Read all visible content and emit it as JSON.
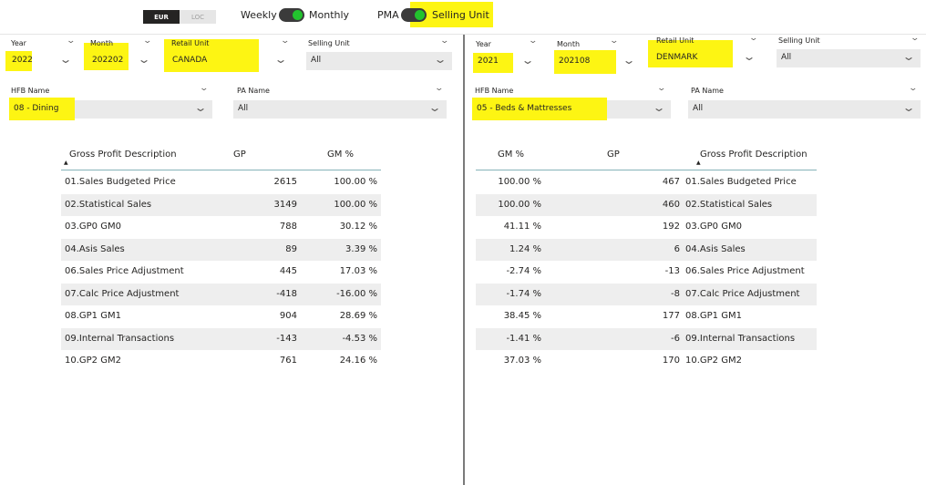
{
  "toolbar": {
    "currency": {
      "active": "EUR",
      "inactive": "LOC"
    },
    "period_toggle": {
      "left_label": "Weekly",
      "right_label": "Monthly"
    },
    "mode_toggle": {
      "left_label": "PMA",
      "right_label": "Selling Unit"
    },
    "colors": {
      "toggle_on": "#22c32e",
      "highlight": "#fdf513"
    }
  },
  "left": {
    "filters": {
      "year": {
        "label": "Year",
        "value": "2022"
      },
      "month": {
        "label": "Month",
        "value": "202202"
      },
      "retail_unit": {
        "label": "Retail Unit",
        "value": "CANADA"
      },
      "selling_unit": {
        "label": "Selling Unit",
        "value": "All"
      },
      "hfb_name": {
        "label": "HFB Name",
        "value": "08 - Dining"
      },
      "pa_name": {
        "label": "PA Name",
        "value": "All"
      }
    },
    "table": {
      "headers": {
        "desc": "Gross Profit Description",
        "gp": "GP",
        "gm": "GM %"
      },
      "rows": [
        {
          "desc": "01.Sales Budgeted Price",
          "gp": "2615",
          "gm": "100.00 %"
        },
        {
          "desc": "02.Statistical Sales",
          "gp": "3149",
          "gm": "100.00 %"
        },
        {
          "desc": "03.GP0 GM0",
          "gp": "788",
          "gm": "30.12 %"
        },
        {
          "desc": "04.Asis Sales",
          "gp": "89",
          "gm": "3.39 %"
        },
        {
          "desc": "06.Sales Price Adjustment",
          "gp": "445",
          "gm": "17.03 %"
        },
        {
          "desc": "07.Calc Price Adjustment",
          "gp": "-418",
          "gm": "-16.00 %"
        },
        {
          "desc": "08.GP1 GM1",
          "gp": "904",
          "gm": "28.69 %"
        },
        {
          "desc": "09.Internal Transactions",
          "gp": "-143",
          "gm": "-4.53 %"
        },
        {
          "desc": "10.GP2 GM2",
          "gp": "761",
          "gm": "24.16 %"
        }
      ]
    }
  },
  "right": {
    "filters": {
      "year": {
        "label": "Year",
        "value": "2021"
      },
      "month": {
        "label": "Month",
        "value": "202108"
      },
      "retail_unit": {
        "label": "Retail Unit",
        "value": "DENMARK"
      },
      "selling_unit": {
        "label": "Selling Unit",
        "value": "All"
      },
      "hfb_name": {
        "label": "HFB Name",
        "value": "05 - Beds & Mattresses"
      },
      "pa_name": {
        "label": "PA Name",
        "value": "All"
      }
    },
    "table": {
      "headers": {
        "gm": "GM %",
        "gp": "GP",
        "desc": "Gross Profit Description"
      },
      "rows": [
        {
          "gm": "100.00 %",
          "gp": "467",
          "desc": "01.Sales Budgeted Price"
        },
        {
          "gm": "100.00 %",
          "gp": "460",
          "desc": "02.Statistical Sales"
        },
        {
          "gm": "41.11 %",
          "gp": "192",
          "desc": "03.GP0 GM0"
        },
        {
          "gm": "1.24 %",
          "gp": "6",
          "desc": "04.Asis Sales"
        },
        {
          "gm": "-2.74 %",
          "gp": "-13",
          "desc": "06.Sales Price Adjustment"
        },
        {
          "gm": "-1.74 %",
          "gp": "-8",
          "desc": "07.Calc Price Adjustment"
        },
        {
          "gm": "38.45 %",
          "gp": "177",
          "desc": "08.GP1 GM1"
        },
        {
          "gm": "-1.41 %",
          "gp": "-6",
          "desc": "09.Internal Transactions"
        },
        {
          "gm": "37.03 %",
          "gp": "170",
          "desc": "10.GP2 GM2"
        }
      ]
    }
  }
}
